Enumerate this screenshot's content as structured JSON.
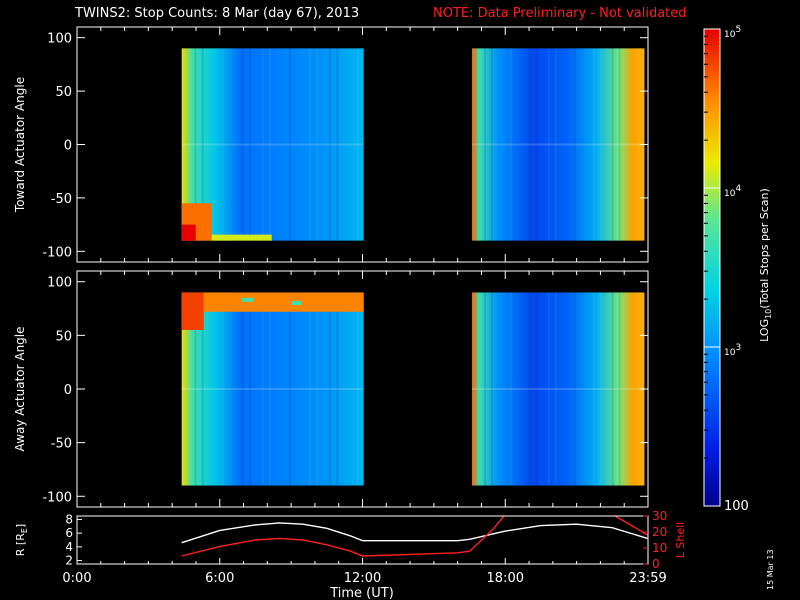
{
  "title": {
    "main": "TWINS2: Stop Counts:  8 Mar (day  67), 2013",
    "note": "NOTE: Data Preliminary - Not validated"
  },
  "stamp": "15 Mar 13",
  "chart_data": [
    {
      "type": "heatmap",
      "panel": "toward",
      "ylabel": "Toward Actuator Angle",
      "ylim": [
        -110,
        110
      ],
      "yticks": [
        -100,
        -50,
        0,
        50,
        100
      ],
      "x_range_hours": [
        0,
        24
      ],
      "data_blocks_hours": [
        [
          4.4,
          12.05
        ],
        [
          16.6,
          23.85
        ]
      ]
    },
    {
      "type": "heatmap",
      "panel": "away",
      "ylabel": "Away Actuator Angle",
      "ylim": [
        -110,
        110
      ],
      "yticks": [
        -100,
        -50,
        0,
        50,
        100
      ],
      "x_range_hours": [
        0,
        24
      ],
      "data_blocks_hours": [
        [
          4.4,
          12.05
        ],
        [
          16.6,
          23.85
        ]
      ]
    },
    {
      "type": "line",
      "panel": "orbit",
      "xlabel": "Time (UT)",
      "xticks": [
        "0:00",
        "6:00",
        "12:00",
        "18:00",
        "23:59"
      ],
      "xtick_hours": [
        0,
        6,
        12,
        18,
        24
      ],
      "y_left": {
        "label": "R [R",
        "label_sub": "E",
        "label_end": "]",
        "ticks": [
          2,
          4,
          6,
          8
        ],
        "range": [
          1.5,
          8.5
        ]
      },
      "y_right": {
        "label": "L Shell",
        "ticks": [
          0,
          10,
          20,
          30
        ],
        "range": [
          0,
          30
        ]
      },
      "series": [
        {
          "axis": "left",
          "color": "#ffffff",
          "x": [
            4.4,
            6.0,
            7.5,
            8.5,
            9.5,
            10.5,
            11.5,
            12.0,
            14.0,
            16.0,
            16.5,
            18.0,
            19.5,
            21.0,
            22.5,
            24.0
          ],
          "y": [
            4.6,
            6.4,
            7.2,
            7.5,
            7.3,
            6.7,
            5.6,
            4.9,
            4.9,
            4.9,
            5.1,
            6.3,
            7.1,
            7.3,
            6.8,
            5.2
          ]
        },
        {
          "axis": "right",
          "color": "#ff2020",
          "x": [
            4.4,
            6.0,
            7.5,
            8.5,
            9.5,
            10.5,
            11.5,
            12.0,
            14.0,
            16.0,
            16.5,
            17.5,
            18.0,
            22.5,
            24.0
          ],
          "y": [
            5,
            11,
            15,
            16,
            15,
            12,
            8,
            5,
            6,
            7,
            8,
            22,
            31,
            31,
            18
          ]
        }
      ]
    }
  ],
  "colorbar": {
    "label": "LOG",
    "label_sub": "10",
    "label_rest": "(Total Stops per Scan)",
    "tick_labels": [
      "100",
      "10",
      "10",
      "10"
    ],
    "tick_exponents": [
      "",
      "3",
      "4",
      "5"
    ],
    "range_log": [
      2,
      5
    ]
  }
}
